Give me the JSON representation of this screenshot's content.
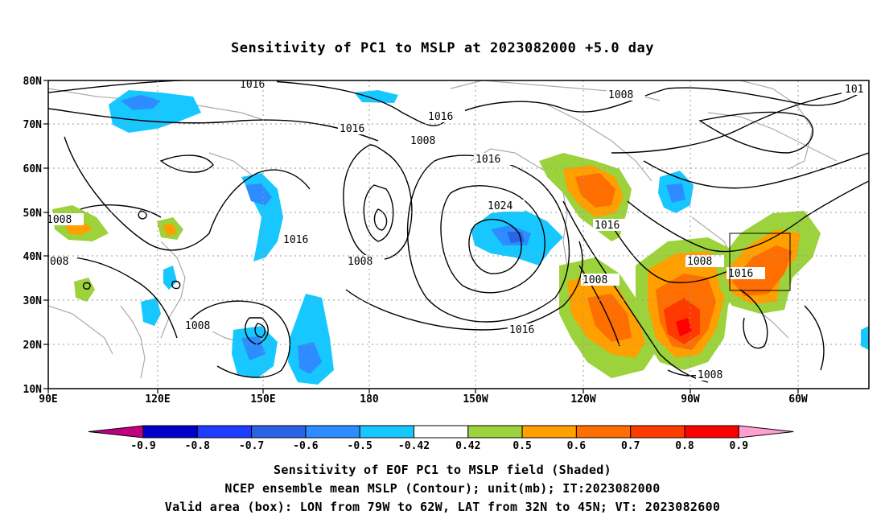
{
  "title": "Sensitivity of PC1 to MSLP at 2023082000 +5.0 day",
  "lat_labels": [
    "80N",
    "70N",
    "60N",
    "50N",
    "40N",
    "30N",
    "20N",
    "10N"
  ],
  "lon_labels": [
    "90E",
    "120E",
    "150E",
    "180",
    "150W",
    "120W",
    "90W",
    "60W"
  ],
  "contour_labels": {
    "c1016": "1016",
    "c1008": "1008",
    "c1024": "1024",
    "c101_clipped": "101",
    "c008_clipped": "008"
  },
  "colorbar": {
    "tick_labels": [
      "-0.9",
      "-0.8",
      "-0.7",
      "-0.6",
      "-0.5",
      "-0.42",
      "0.42",
      "0.5",
      "0.6",
      "0.7",
      "0.8",
      "0.9"
    ],
    "colors": [
      "#c0007f",
      "#0000c8",
      "#1e3cff",
      "#2864e6",
      "#2d8cff",
      "#16c8ff",
      "#ffffff",
      "#9cd23c",
      "#ff9f00",
      "#ff6e00",
      "#ff3a00",
      "#ff0000",
      "#ff9ecf"
    ]
  },
  "shading_colors": {
    "green": "#9cd23c",
    "orange": "#ff9f00",
    "dark_orange": "#ff6e00",
    "red_orange": "#ff3a00",
    "red": "#ff0000",
    "light_blue": "#16c8ff",
    "mid_blue": "#2d8cff",
    "blue": "#2864e6"
  },
  "captions": {
    "line1": "Sensitivity of EOF PC1 to MSLP field (Shaded)",
    "line2": "NCEP ensemble mean MSLP (Contour); unit(mb); IT:2023082000",
    "line3": "Valid area (box): LON from 79W to 62W, LAT from 32N to 45N; VT: 2023082600"
  },
  "valid_box": {
    "lon_w": -79,
    "lon_e": -62,
    "lat_s": 32,
    "lat_n": 45
  }
}
